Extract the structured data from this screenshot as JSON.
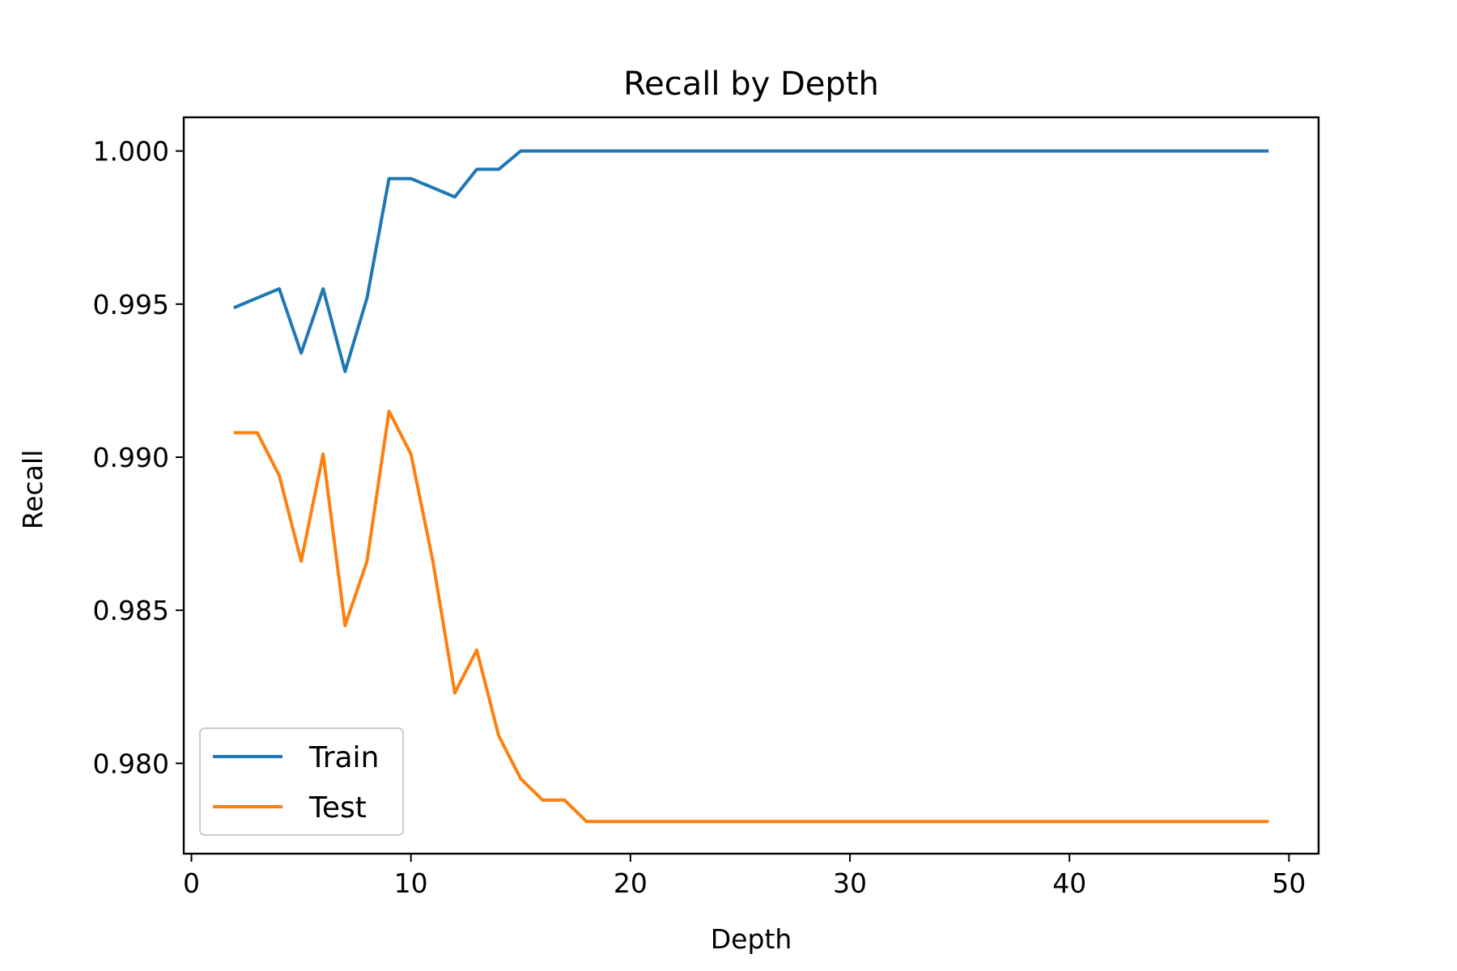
{
  "chart_data": {
    "type": "line",
    "title": "Recall by Depth",
    "xlabel": "Depth",
    "ylabel": "Recall",
    "xlim": [
      -0.35,
      51.35
    ],
    "ylim": [
      0.97705,
      1.0011
    ],
    "xticks": [
      0,
      10,
      20,
      30,
      40,
      50
    ],
    "xtick_labels": [
      "0",
      "10",
      "20",
      "30",
      "40",
      "50"
    ],
    "yticks": [
      0.98,
      0.985,
      0.99,
      0.995,
      1.0
    ],
    "ytick_labels": [
      "0.980",
      "0.985",
      "0.990",
      "0.995",
      "1.000"
    ],
    "grid": false,
    "legend": "lower-left",
    "x": [
      2,
      3,
      4,
      5,
      6,
      7,
      8,
      9,
      10,
      11,
      12,
      13,
      14,
      15,
      16,
      17,
      18,
      19,
      20,
      21,
      22,
      23,
      24,
      25,
      26,
      27,
      28,
      29,
      30,
      31,
      32,
      33,
      34,
      35,
      36,
      37,
      38,
      39,
      40,
      41,
      42,
      43,
      44,
      45,
      46,
      47,
      48,
      49
    ],
    "series": [
      {
        "name": "Train",
        "color": "#1f77b4",
        "values": [
          0.9949,
          0.9952,
          0.9955,
          0.9934,
          0.9955,
          0.9928,
          0.9952,
          0.9991,
          0.9991,
          0.9988,
          0.9985,
          0.9994,
          0.9994,
          1.0,
          1.0,
          1.0,
          1.0,
          1.0,
          1.0,
          1.0,
          1.0,
          1.0,
          1.0,
          1.0,
          1.0,
          1.0,
          1.0,
          1.0,
          1.0,
          1.0,
          1.0,
          1.0,
          1.0,
          1.0,
          1.0,
          1.0,
          1.0,
          1.0,
          1.0,
          1.0,
          1.0,
          1.0,
          1.0,
          1.0,
          1.0,
          1.0,
          1.0,
          1.0
        ]
      },
      {
        "name": "Test",
        "color": "#ff7f0e",
        "values": [
          0.9908,
          0.9908,
          0.9894,
          0.9866,
          0.9901,
          0.9845,
          0.9866,
          0.9915,
          0.9901,
          0.9866,
          0.9823,
          0.9837,
          0.9809,
          0.9795,
          0.9788,
          0.9788,
          0.9781,
          0.9781,
          0.9781,
          0.9781,
          0.9781,
          0.9781,
          0.9781,
          0.9781,
          0.9781,
          0.9781,
          0.9781,
          0.9781,
          0.9781,
          0.9781,
          0.9781,
          0.9781,
          0.9781,
          0.9781,
          0.9781,
          0.9781,
          0.9781,
          0.9781,
          0.9781,
          0.9781,
          0.9781,
          0.9781,
          0.9781,
          0.9781,
          0.9781,
          0.9781,
          0.9781,
          0.9781
        ]
      }
    ]
  }
}
